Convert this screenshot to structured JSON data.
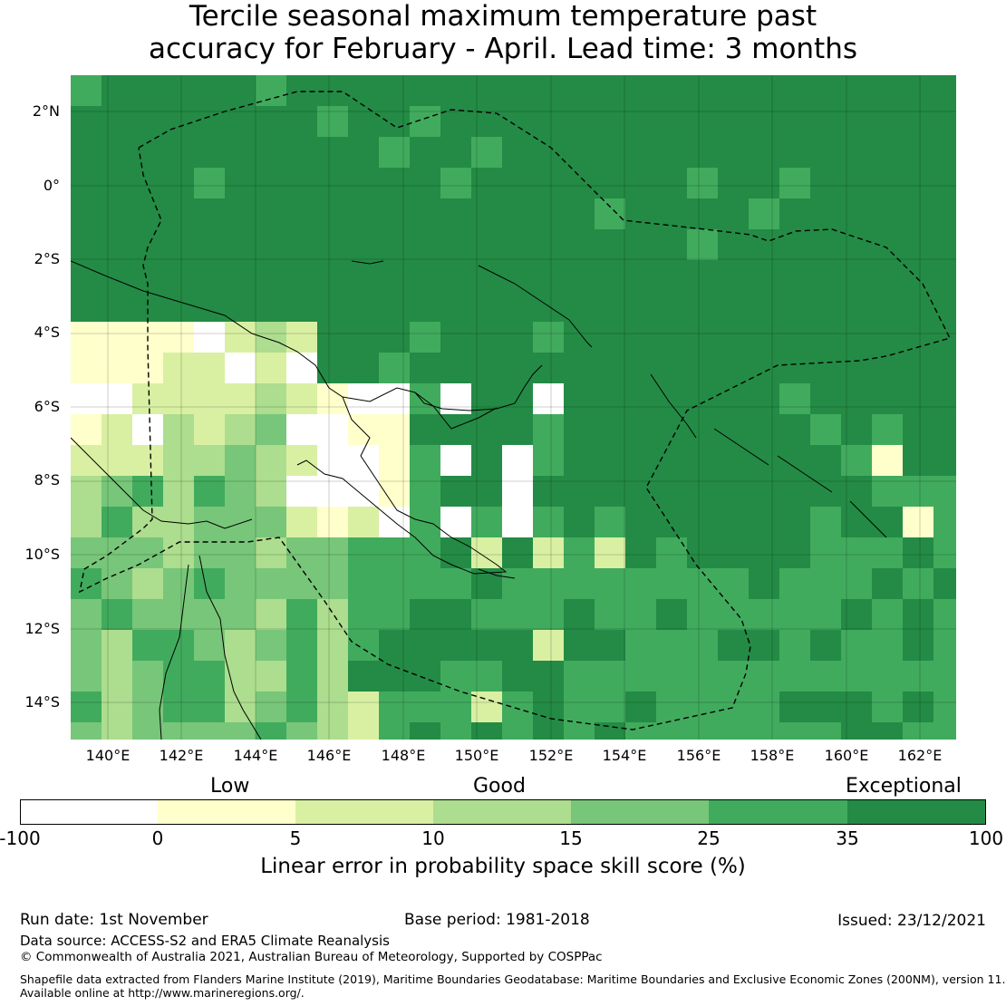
{
  "title": {
    "line1": "Tercile seasonal maximum temperature past",
    "line2": "accuracy for February - April. Lead time: 3 months"
  },
  "map": {
    "lat_labels": [
      "2°N",
      "0°",
      "2°S",
      "4°S",
      "6°S",
      "8°S",
      "10°S",
      "12°S",
      "14°S"
    ],
    "lon_labels": [
      "140°E",
      "142°E",
      "144°E",
      "146°E",
      "148°E",
      "150°E",
      "152°E",
      "154°E",
      "156°E",
      "158°E",
      "160°E",
      "162°E"
    ]
  },
  "colorbar": {
    "category_labels": [
      "Low",
      "Good",
      "Exceptional"
    ],
    "ticks": [
      "-100",
      "0",
      "5",
      "10",
      "15",
      "25",
      "35",
      "100"
    ],
    "colors": [
      "#ffffff",
      "#ffffcc",
      "#d9f0a3",
      "#addd8e",
      "#78c679",
      "#41ab5d",
      "#238b45"
    ],
    "title": "Linear error in probability space skill score (%)"
  },
  "footer": {
    "run_date": "Run date: 1st November",
    "base_period": "Base period: 1981-2018",
    "issued": "Issued: 23/12/2021",
    "data_source": "Data source: ACCESS-S2 and ERA5 Climate Reanalysis",
    "copyright": "© Commonwealth of Australia 2021, Australian Bureau of Meteorology, Supported by COSPPac",
    "shapefile_line1": "Shapefile data extracted from Flanders Marine Institute (2019), Maritime Boundaries Geodatabase: Maritime Boundaries and Exclusive Economic Zones (200NM), version 11.",
    "shapefile_line2": "Available online at http://www.marineregions.org/."
  }
}
